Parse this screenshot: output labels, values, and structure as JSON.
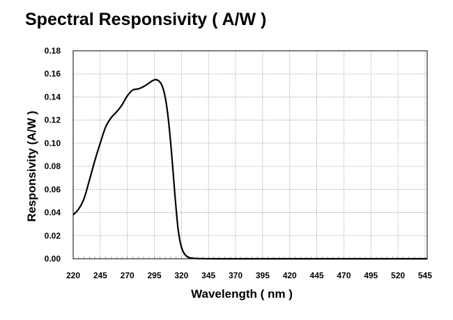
{
  "page": {
    "title": "Spectral Responsivity ( A/W )"
  },
  "chart_data": {
    "type": "line",
    "title": "Spectral Responsivity ( A/W )",
    "xlabel": "Wavelength ( nm )",
    "ylabel": "Responsivity (A/W )",
    "xlim": [
      220,
      547
    ],
    "ylim": [
      0,
      0.18
    ],
    "x_ticks": [
      "220",
      "245",
      "270",
      "295",
      "320",
      "345",
      "370",
      "395",
      "420",
      "445",
      "470",
      "495",
      "520",
      "545"
    ],
    "y_ticks": [
      "0.00",
      "0.02",
      "0.04",
      "0.06",
      "0.08",
      "0.10",
      "0.12",
      "0.14",
      "0.16",
      "0.18"
    ],
    "grid": true,
    "legend": "none",
    "colors": {
      "line": "#000000",
      "grid": "#9a9a9a",
      "axis": "#000000"
    },
    "series": [
      {
        "x": [
          220,
          225,
          230,
          235,
          240,
          245,
          250,
          255,
          260,
          265,
          270,
          275,
          280,
          285,
          290,
          293,
          296,
          299,
          302,
          305,
          308,
          311,
          314,
          317,
          320,
          323,
          326,
          329,
          332,
          335,
          340,
          360,
          400,
          450,
          500,
          547
        ],
        "y": [
          0.038,
          0.043,
          0.052,
          0.068,
          0.085,
          0.1,
          0.114,
          0.122,
          0.127,
          0.133,
          0.141,
          0.146,
          0.147,
          0.149,
          0.152,
          0.154,
          0.155,
          0.154,
          0.15,
          0.14,
          0.12,
          0.09,
          0.055,
          0.025,
          0.01,
          0.004,
          0.0015,
          0.0006,
          0.0003,
          0.0002,
          0.0001,
          0.0,
          0.0,
          0.0,
          0.0,
          0.0
        ]
      }
    ]
  }
}
